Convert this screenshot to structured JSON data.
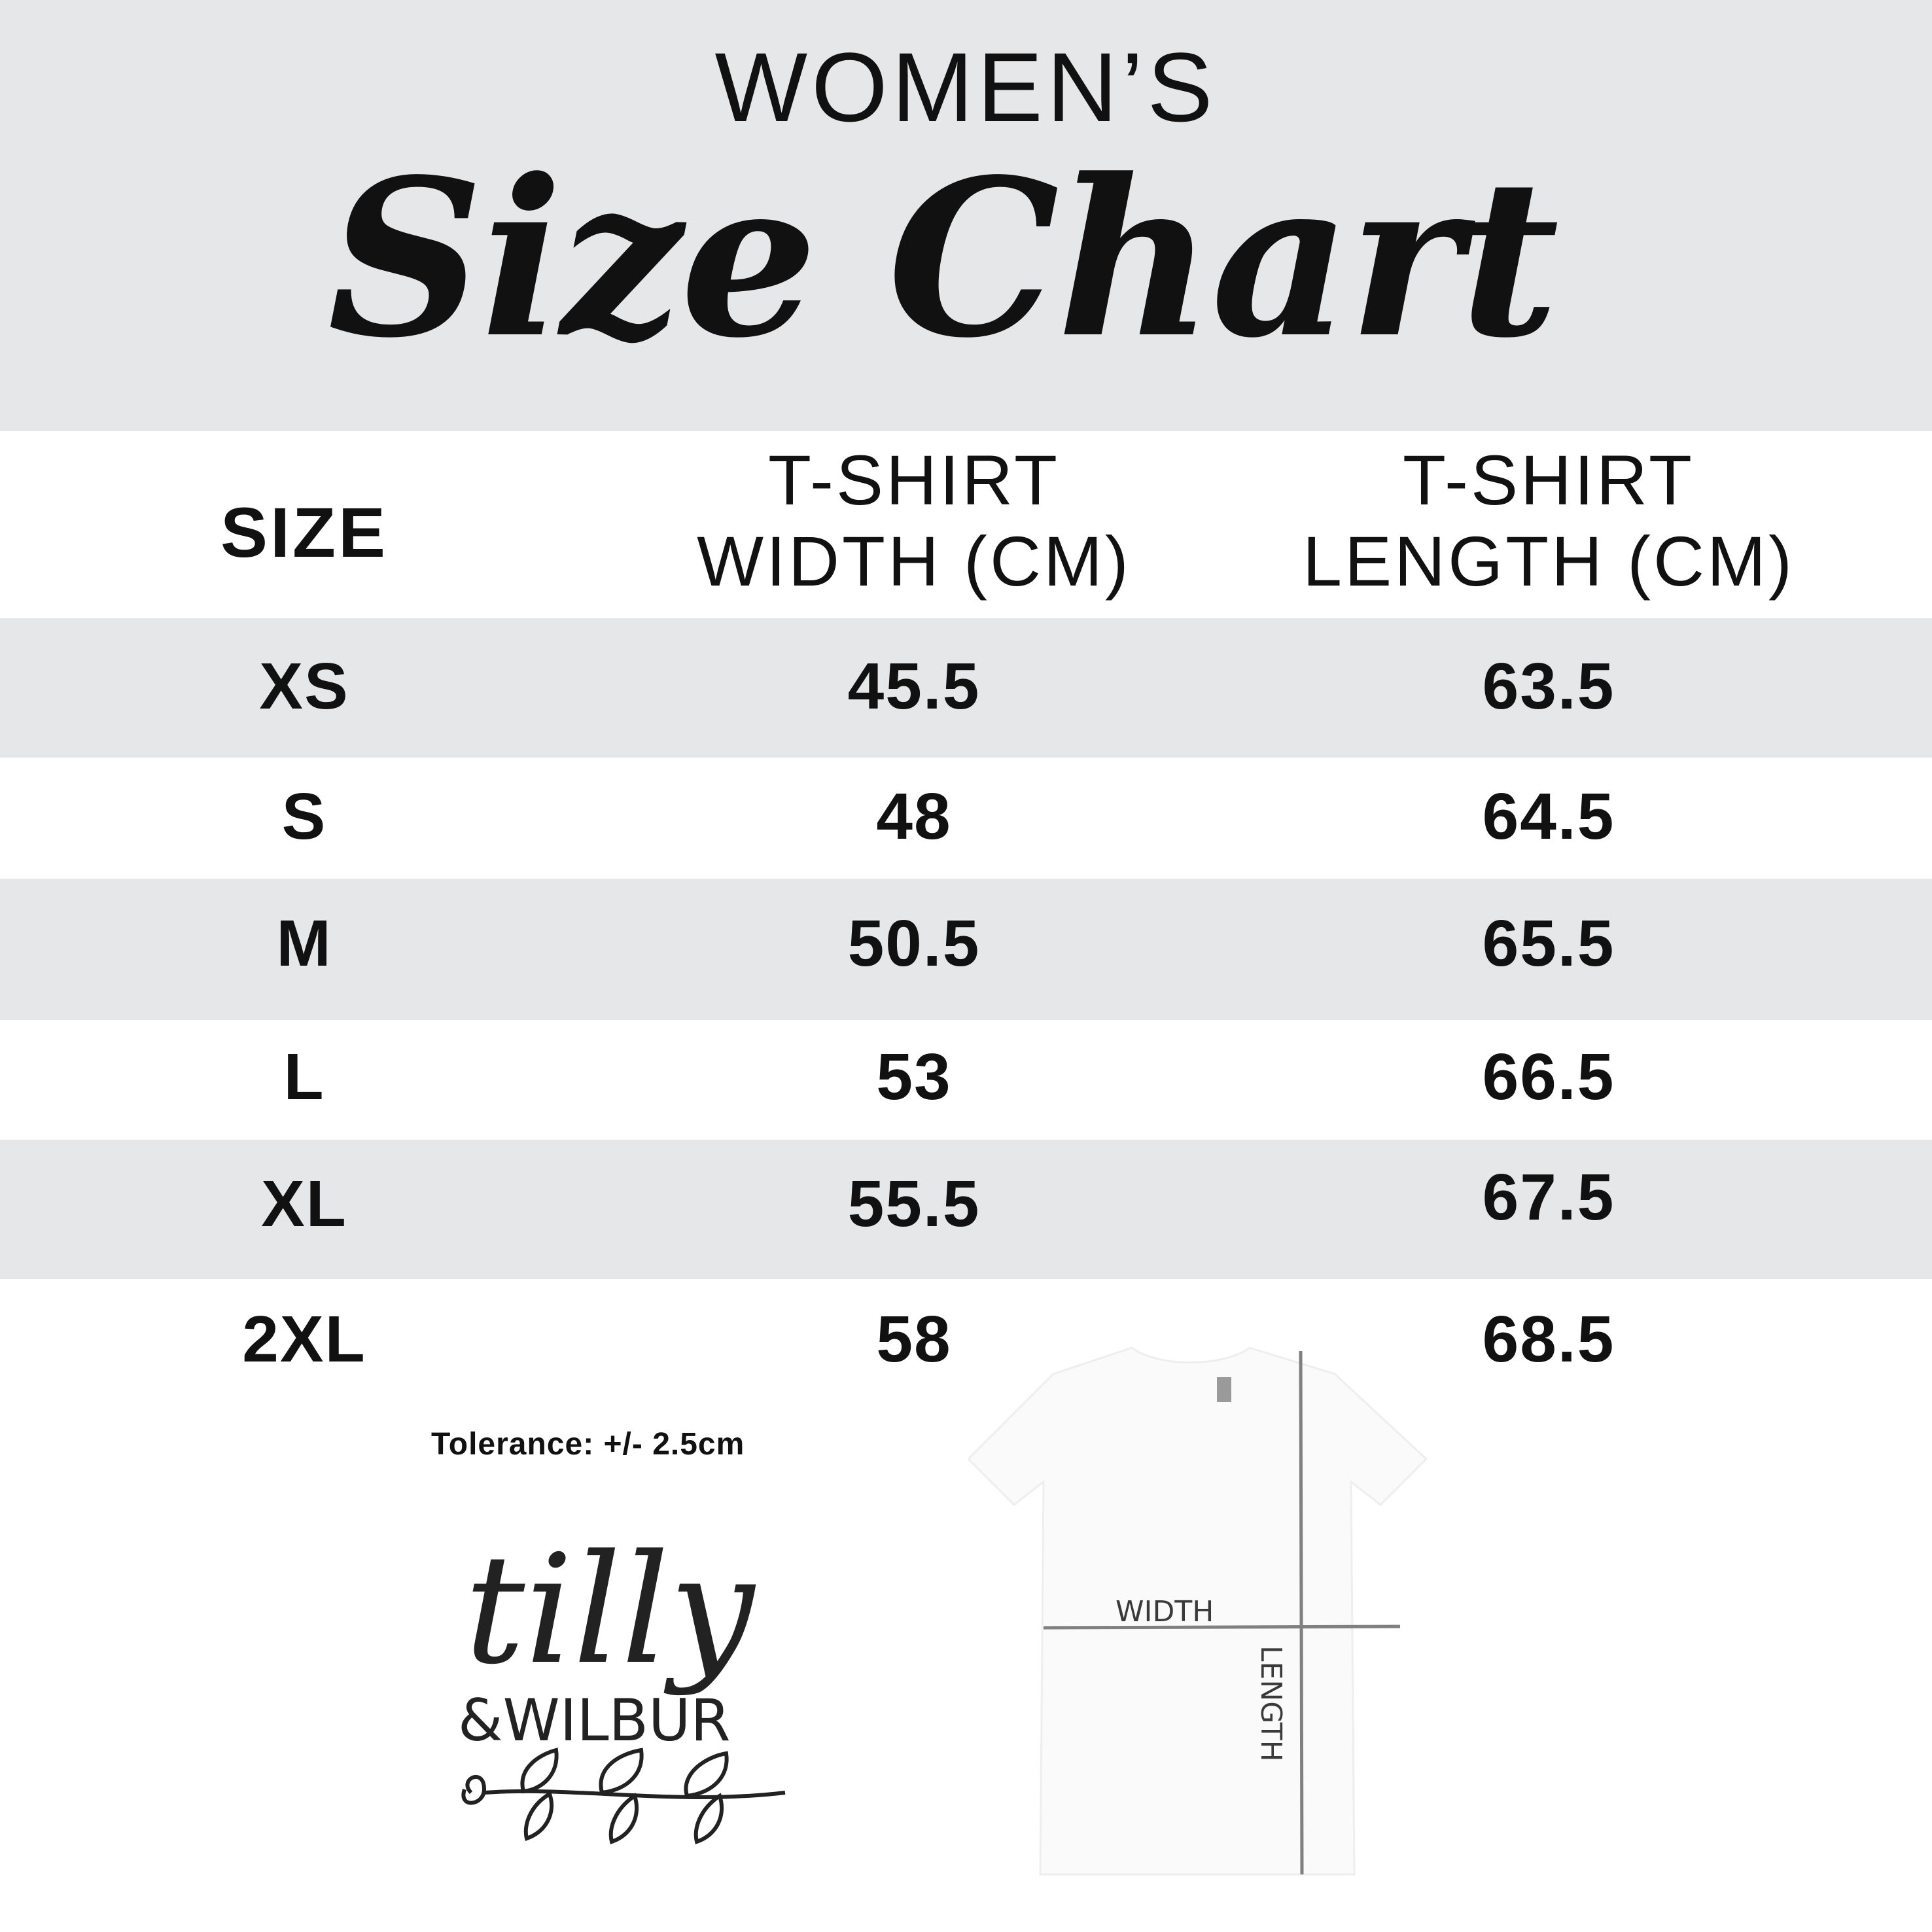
{
  "header": {
    "eyebrow": "WOMEN’S",
    "title": "Size Chart",
    "background": "#e6e7e8"
  },
  "table": {
    "columns": [
      {
        "line1": "SIZE",
        "line2": ""
      },
      {
        "line1": "T-SHIRT",
        "line2": "WIDTH (CM)"
      },
      {
        "line1": "T-SHIRT",
        "line2": "LENGTH (CM)"
      }
    ],
    "rows": [
      {
        "size": "XS",
        "width": "45.5",
        "length": "63.5"
      },
      {
        "size": "S",
        "width": "48",
        "length": "64.5"
      },
      {
        "size": "M",
        "width": "50.5",
        "length": "65.5"
      },
      {
        "size": "L",
        "width": "53",
        "length": "66.5"
      },
      {
        "size": "XL",
        "width": "55.5",
        "length": "67.5"
      },
      {
        "size": "2XL",
        "width": "58",
        "length": "68.5"
      }
    ],
    "stripe_color": "#e6e7e8"
  },
  "tolerance": "Tolerance: +/- 2.5cm",
  "logo": {
    "line1": "tilly",
    "line2": "&WILBUR"
  },
  "diagram": {
    "width_label": "WIDTH",
    "length_label": "LENGTH",
    "line_color": "#808080",
    "label_color": "#3a3a3a"
  }
}
